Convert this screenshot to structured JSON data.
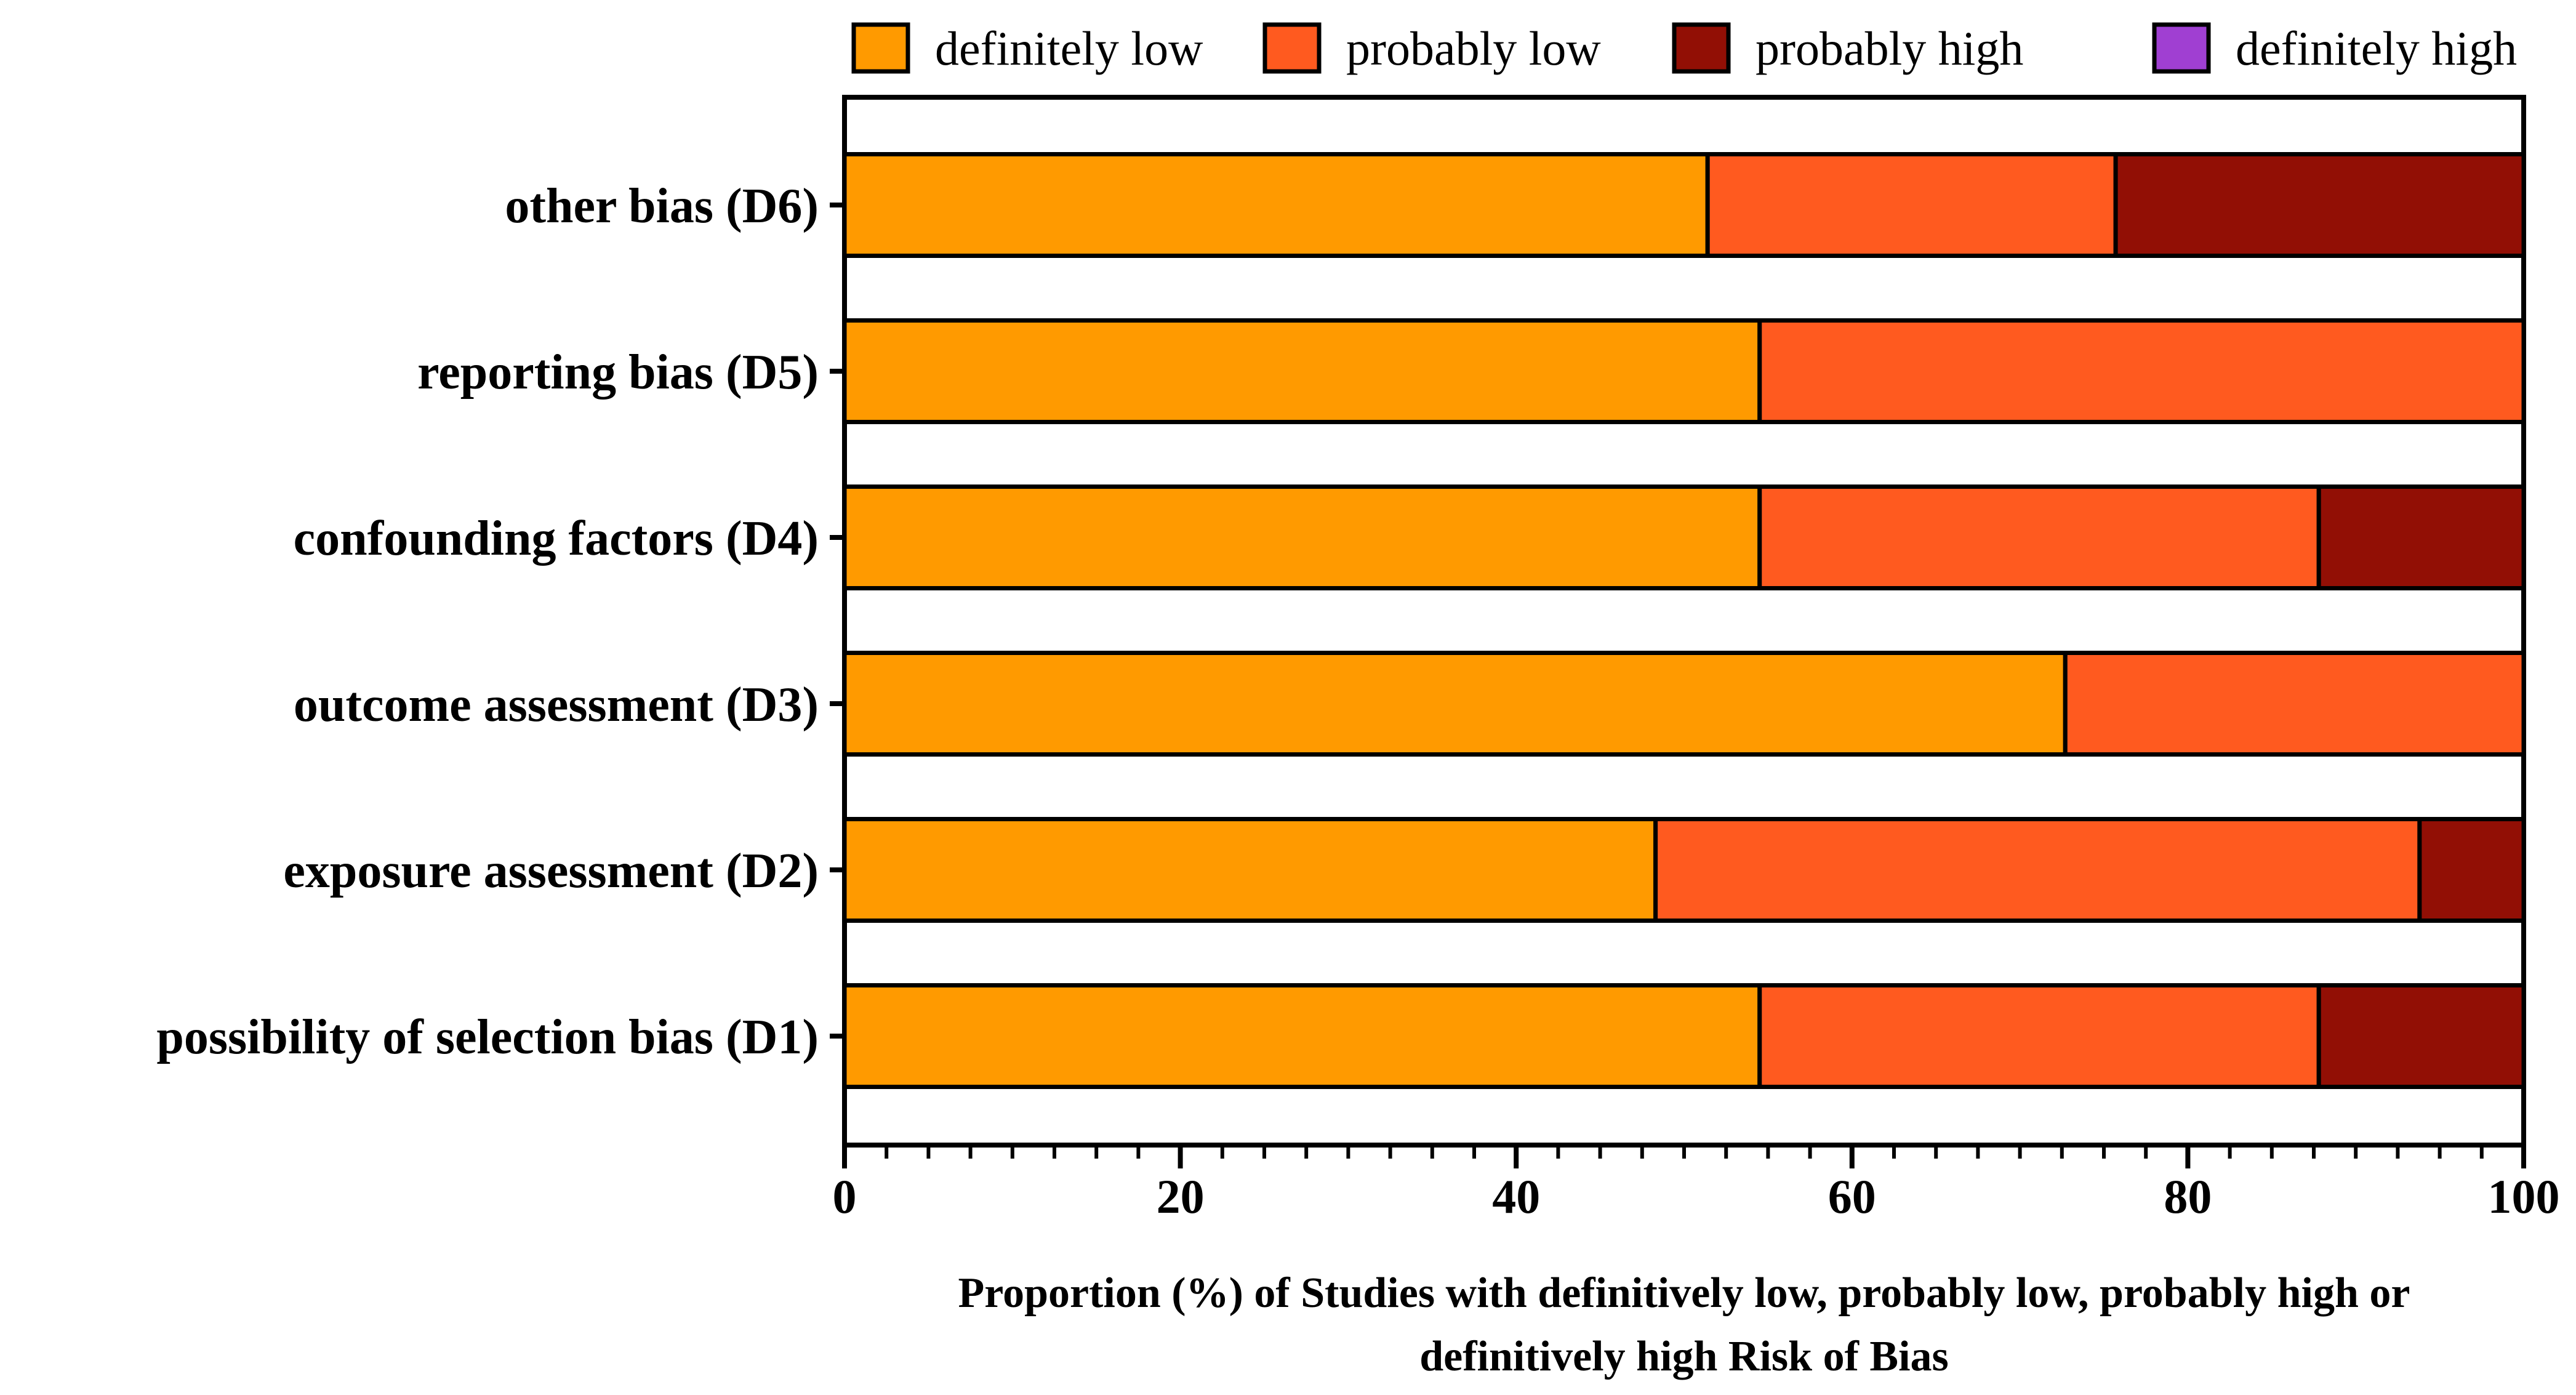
{
  "chart_data": {
    "type": "bar",
    "orientation": "horizontal",
    "stacked": true,
    "categories": [
      "other bias (D6)",
      "reporting bias (D5)",
      "confounding factors (D4)",
      "outcome assessment (D3)",
      "exposure assessment (D2)",
      "possibility of selection bias (D1)"
    ],
    "series": [
      {
        "name": "definitely low",
        "color": "#FF9A00",
        "values": [
          51.4,
          54.5,
          54.5,
          72.7,
          48.3,
          54.5
        ]
      },
      {
        "name": "probably low",
        "color": "#FF5A1F",
        "values": [
          24.3,
          45.5,
          33.3,
          27.3,
          45.5,
          33.3
        ]
      },
      {
        "name": "probably high",
        "color": "#920F05",
        "values": [
          24.3,
          0,
          12.2,
          0,
          6.2,
          12.2
        ]
      },
      {
        "name": "definitely high",
        "color": "#A03FD2",
        "values": [
          0,
          0,
          0,
          0,
          0,
          0
        ]
      }
    ],
    "xlim": [
      0,
      100
    ],
    "xticks": [
      "0",
      "20",
      "40",
      "60",
      "80",
      "100"
    ],
    "xlabel": [
      "Proportion (%) of Studies with definitively low, probably low, probably high or",
      "definitively high Risk of Bias"
    ],
    "ylabel": "",
    "legend_position": "top",
    "grid": false
  }
}
